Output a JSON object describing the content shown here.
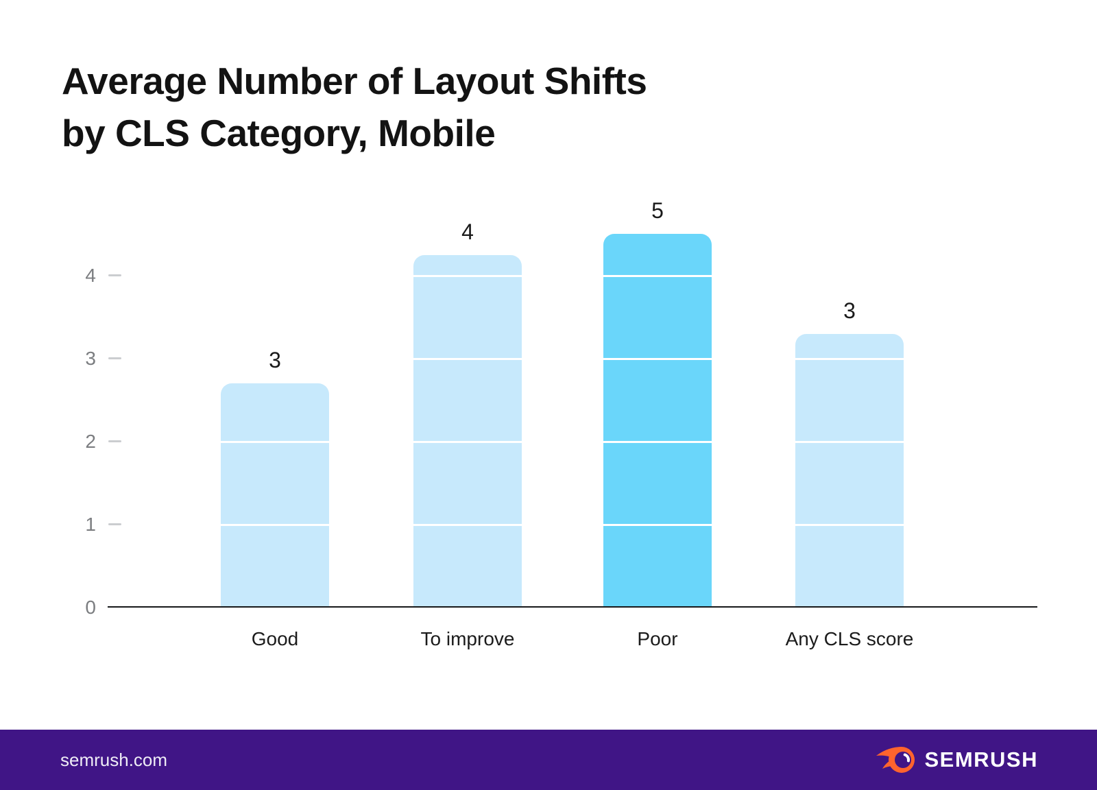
{
  "header": {
    "title_line1": "Average Number of Layout Shifts",
    "title_line2": "by CLS Category, Mobile"
  },
  "chart_data": {
    "type": "bar",
    "title": "Average Number of Layout Shifts by CLS Category, Mobile",
    "categories": [
      "Good",
      "To improve",
      "Poor",
      "Any CLS score"
    ],
    "values": [
      3,
      4,
      5,
      3
    ],
    "bar_heights_units": [
      2.7,
      4.25,
      4.5,
      3.3
    ],
    "highlight_index": 2,
    "highlighted_category": "Poor",
    "xlabel": "",
    "ylabel": "",
    "y_ticks": [
      0,
      1,
      2,
      3,
      4
    ],
    "ylim": [
      0,
      4.7
    ],
    "legend": "none",
    "grid": "white unit lines visible only inside bars"
  },
  "colors": {
    "bar_default": "#C7E9FC",
    "bar_highlight": "#6AD6FA",
    "footer_bg": "#401586",
    "brand_orange": "#FF642D",
    "axis_line": "#17181A",
    "tick_label": "#7B7D80",
    "title_text": "#131313"
  },
  "footer": {
    "site_url": "semrush.com",
    "logo_text": "SEMRUSH"
  }
}
